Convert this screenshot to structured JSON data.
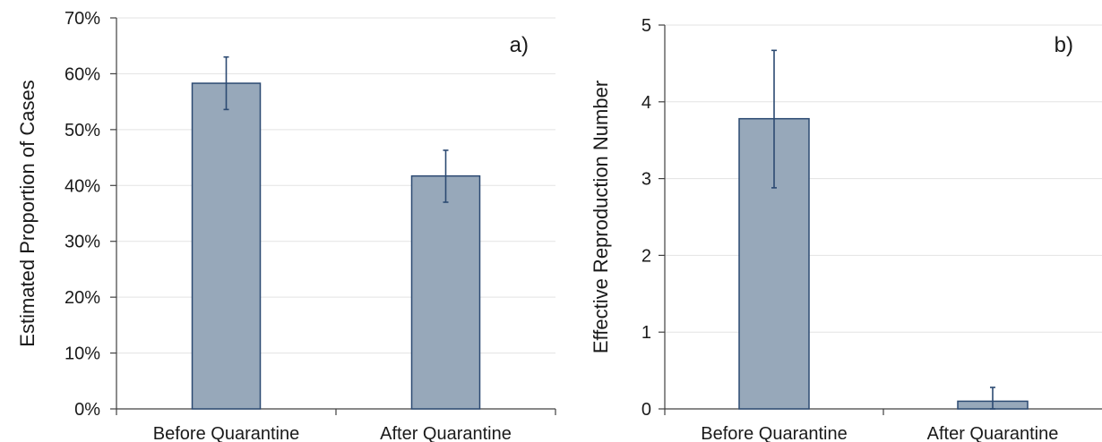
{
  "chart_data": [
    {
      "type": "bar",
      "panel_label": "a)",
      "ylabel": "Estimated Proportion of Cases",
      "categories": [
        "Before Quarantine",
        "After Quarantine"
      ],
      "values": [
        58.3,
        41.7
      ],
      "error_low": [
        53.6,
        37.0
      ],
      "error_high": [
        63.0,
        46.3
      ],
      "ylim": [
        0,
        70
      ],
      "yticks": [
        0,
        10,
        20,
        30,
        40,
        50,
        60,
        70
      ],
      "ytick_labels": [
        "0%",
        "10%",
        "20%",
        "30%",
        "40%",
        "50%",
        "60%",
        "70%"
      ],
      "grid": true,
      "bar_color": "#97a8ba",
      "bar_edge_color": "#2c4a72",
      "error_color": "#2c4a72"
    },
    {
      "type": "bar",
      "panel_label": "b)",
      "ylabel": "Effective Reproduction Number",
      "categories": [
        "Before Quarantine",
        "After Quarantine"
      ],
      "values": [
        3.78,
        0.1
      ],
      "error_low": [
        2.88,
        0.0
      ],
      "error_high": [
        4.67,
        0.28
      ],
      "ylim": [
        0,
        5
      ],
      "yticks": [
        0,
        1,
        2,
        3,
        4,
        5
      ],
      "ytick_labels": [
        "0",
        "1",
        "2",
        "3",
        "4",
        "5"
      ],
      "grid": true,
      "bar_color": "#97a8ba",
      "bar_edge_color": "#2c4a72",
      "error_color": "#2c4a72"
    }
  ]
}
